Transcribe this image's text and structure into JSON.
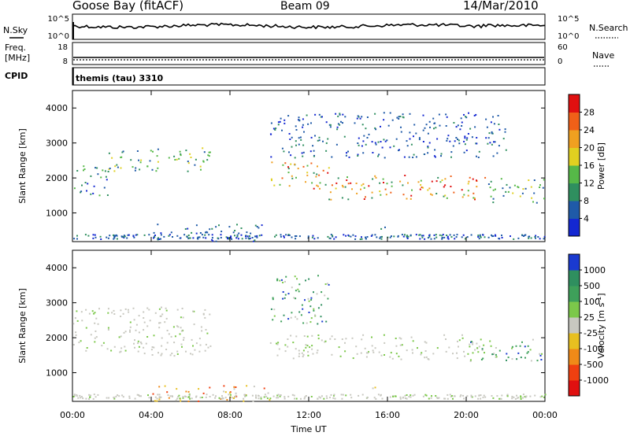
{
  "header": {
    "station": "Goose Bay (fitACF)",
    "beam": "Beam 09",
    "date": "14/Mar/2010"
  },
  "strip_panels": {
    "nsky": {
      "label": "N.Sky",
      "ticks": [
        "10^5",
        "10^0"
      ],
      "right_label": "N.Search",
      "right_ticks": [
        "10^5",
        "10^0"
      ]
    },
    "freq": {
      "label_lines": [
        "Freq.",
        "[MHz]"
      ],
      "ticks": [
        "18",
        "8"
      ],
      "right_label": "Nave",
      "right_ticks": [
        "60",
        "0"
      ]
    },
    "cpid": {
      "label": "CPID",
      "text": "themis (tau) 3310"
    }
  },
  "chart_data": [
    {
      "type": "heatmap",
      "name": "Power",
      "ylabel": "Slant Range [km]",
      "ylim": [
        180,
        4500
      ],
      "yticks": [
        "1000",
        "2000",
        "3000",
        "4000"
      ],
      "x_range_hours": [
        0,
        24
      ],
      "colorbar": {
        "label": "Power [dB]",
        "ticks": [
          "4",
          "8",
          "12",
          "16",
          "20",
          "24",
          "28"
        ],
        "colors": [
          "#1428d2",
          "#1f5aa8",
          "#2f8f5f",
          "#56b848",
          "#e0d020",
          "#f0a020",
          "#f06018",
          "#e01010"
        ]
      },
      "scatter_regions": [
        {
          "t": [
            0.0,
            1.8
          ],
          "r": [
            1500,
            2400
          ],
          "level": "low-mid"
        },
        {
          "t": [
            1.8,
            7.0
          ],
          "r": [
            2200,
            2900
          ],
          "level": "mid"
        },
        {
          "t": [
            10.0,
            13.0
          ],
          "r": [
            1700,
            2500
          ],
          "level": "high"
        },
        {
          "t": [
            13.0,
            21.0
          ],
          "r": [
            1400,
            2100
          ],
          "level": "high"
        },
        {
          "t": [
            21.0,
            24.0
          ],
          "r": [
            1300,
            2000
          ],
          "level": "mid"
        },
        {
          "t": [
            10.0,
            22.0
          ],
          "r": [
            2600,
            3900
          ],
          "level": "low"
        },
        {
          "t": [
            4.0,
            10.0
          ],
          "r": [
            200,
            700
          ],
          "level": "low"
        },
        {
          "t": [
            15.0,
            16.0
          ],
          "r": [
            500,
            650
          ],
          "level": "mid"
        }
      ]
    },
    {
      "type": "heatmap",
      "name": "Velocity",
      "ylabel": "Slant Range [km]",
      "ylim": [
        180,
        4500
      ],
      "yticks": [
        "1000",
        "2000",
        "3000",
        "4000"
      ],
      "xlabel": "Time UT",
      "xticks": [
        "00:00",
        "04:00",
        "08:00",
        "12:00",
        "16:00",
        "20:00",
        "00:00"
      ],
      "colorbar": {
        "label": "Velocity [m s^-1]",
        "ticks": [
          "1000",
          "500",
          "100",
          "25",
          "-25",
          "-100",
          "-500",
          "-1000"
        ],
        "colors": [
          "#1a3ad0",
          "#2f8f5f",
          "#3ea05a",
          "#7cc84a",
          "#c8c8c0",
          "#e8c020",
          "#f08a18",
          "#f04010",
          "#e01010"
        ]
      },
      "scatter_regions": [
        {
          "t": [
            0.0,
            7.0
          ],
          "r": [
            1500,
            2900
          ],
          "level": "ground"
        },
        {
          "t": [
            10.0,
            21.0
          ],
          "r": [
            1400,
            2100
          ],
          "level": "ground"
        },
        {
          "t": [
            10.0,
            13.0
          ],
          "r": [
            2400,
            3800
          ],
          "level": "positive"
        },
        {
          "t": [
            20.0,
            24.0
          ],
          "r": [
            1300,
            2000
          ],
          "level": "positive"
        },
        {
          "t": [
            4.0,
            10.0
          ],
          "r": [
            200,
            650
          ],
          "level": "negative"
        },
        {
          "t": [
            15.0,
            16.0
          ],
          "r": [
            500,
            650
          ],
          "level": "negative"
        }
      ]
    }
  ]
}
